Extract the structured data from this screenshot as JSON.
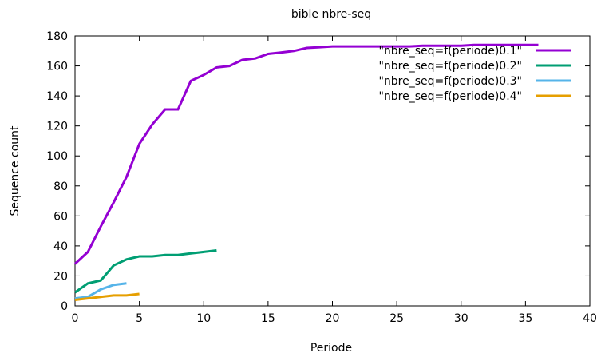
{
  "chart_data": {
    "type": "line",
    "title": "bible nbre-seq",
    "xlabel": "Periode",
    "ylabel": "Sequence count",
    "xlim": [
      0,
      40
    ],
    "ylim": [
      0,
      180
    ],
    "xticks": [
      0,
      5,
      10,
      15,
      20,
      25,
      30,
      35,
      40
    ],
    "yticks": [
      0,
      20,
      40,
      60,
      80,
      100,
      120,
      140,
      160,
      180
    ],
    "grid": false,
    "legend_position": "top-right",
    "series": [
      {
        "name": "\"nbre_seq=f(periode)0.1\"",
        "color": "#9400d3",
        "x": [
          0,
          1,
          2,
          3,
          4,
          5,
          6,
          7,
          8,
          9,
          10,
          11,
          12,
          13,
          14,
          15,
          16,
          17,
          18,
          19,
          20,
          21,
          22,
          23,
          24,
          25,
          26,
          27,
          28,
          29,
          30,
          31,
          32,
          33,
          34,
          35,
          36
        ],
        "y": [
          28,
          36,
          53,
          69,
          86,
          108,
          121,
          131,
          131,
          150,
          154,
          159,
          160,
          164,
          165,
          168,
          169,
          170,
          172,
          172.5,
          173,
          173,
          173,
          173,
          173,
          173,
          173,
          173.5,
          173.5,
          173.5,
          173.5,
          174,
          174,
          174,
          174,
          174,
          174
        ]
      },
      {
        "name": "\"nbre_seq=f(periode)0.2\"",
        "color": "#009e73",
        "x": [
          0,
          1,
          2,
          3,
          4,
          5,
          6,
          7,
          8,
          9,
          10,
          11
        ],
        "y": [
          9,
          15,
          17,
          27,
          31,
          33,
          33,
          34,
          34,
          35,
          36,
          37
        ]
      },
      {
        "name": "\"nbre_seq=f(periode)0.3\"",
        "color": "#56b4e9",
        "x": [
          0,
          1,
          2,
          3,
          4
        ],
        "y": [
          5,
          6,
          11,
          14,
          15
        ]
      },
      {
        "name": "\"nbre_seq=f(periode)0.4\"",
        "color": "#e69f00",
        "x": [
          0,
          1,
          2,
          3,
          4,
          5
        ],
        "y": [
          4,
          5,
          6,
          7,
          7,
          8
        ]
      }
    ]
  }
}
